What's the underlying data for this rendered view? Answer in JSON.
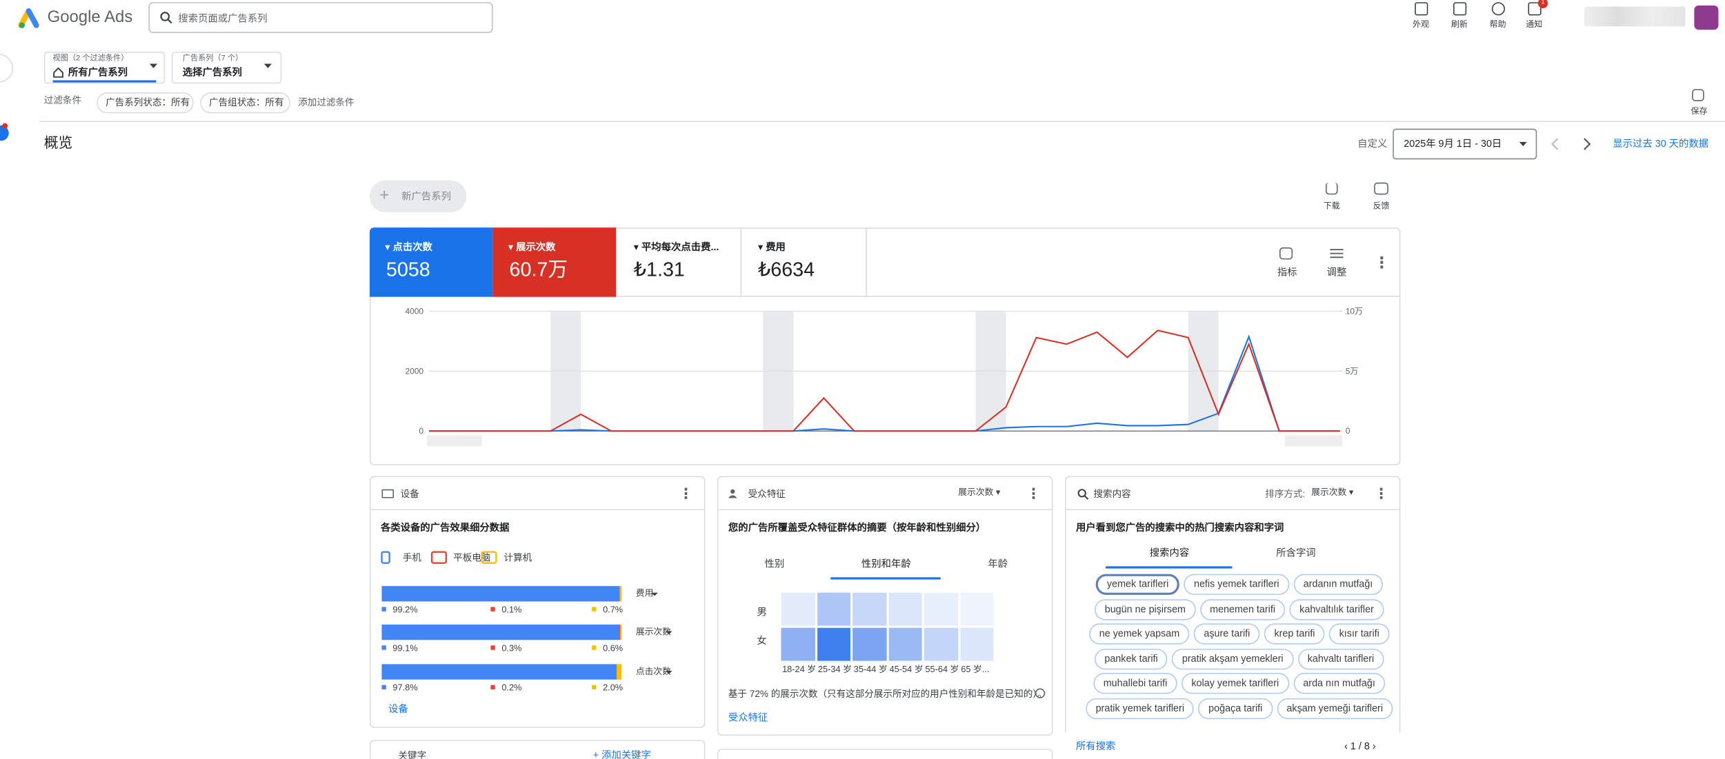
{
  "header": {
    "brand": "Google Ads",
    "search_placeholder": "搜索页面或广告系列",
    "actions": [
      "外观",
      "刷新",
      "帮助",
      "通知"
    ],
    "notification_count": "1"
  },
  "filters": {
    "view_label": "视图（2 个过滤条件）",
    "view_value": "所有广告系列",
    "campaign_label": "广告系列（7 个）",
    "campaign_value": "选择广告系列",
    "filter_title": "过滤条件",
    "chips": [
      "广告系列状态：所有",
      "广告组状态：所有"
    ],
    "add_filter": "添加过滤条件",
    "save": "保存"
  },
  "overview": {
    "title": "概览",
    "custom": "自定义",
    "date_range": "2025年 9月 1日 - 30日",
    "show_last": "显示过去 30 天的数据",
    "new_campaign": "新广告系列",
    "download": "下载",
    "feedback": "反馈",
    "metric_actions": [
      "指标",
      "调整"
    ]
  },
  "metrics": [
    {
      "label": "平均每次点击费...",
      "value": "₺1.31"
    },
    {
      "label": "费用",
      "value": "₺6634"
    }
  ],
  "chart_data": [
    {
      "type": "line",
      "categories": [
        null,
        null,
        null,
        null,
        null,
        null,
        null,
        null,
        null,
        null,
        null,
        null,
        null,
        null,
        null,
        null,
        null,
        null,
        null,
        null,
        null,
        null,
        null,
        null,
        null,
        null,
        null,
        null,
        null,
        null,
        null
      ],
      "series": [
        {
          "name": "点击次数",
          "total": "5058",
          "color": "#1a73e8",
          "values": [
            0,
            0,
            0,
            0,
            0,
            40,
            0,
            0,
            0,
            0,
            0,
            0,
            0,
            70,
            0,
            0,
            0,
            0,
            0,
            110,
            150,
            150,
            260,
            180,
            180,
            220,
            590,
            3150,
            0,
            0,
            0
          ]
        },
        {
          "name": "展示次数",
          "total": "60.7万",
          "color": "#d93025",
          "axis": "y2",
          "values": [
            0,
            0,
            0,
            0,
            0,
            14000,
            0,
            0,
            0,
            0,
            0,
            0,
            0,
            27500,
            0,
            0,
            0,
            0,
            0,
            20000,
            78000,
            72500,
            82500,
            61500,
            84000,
            78000,
            14000,
            72500,
            0,
            0,
            0
          ]
        }
      ],
      "ylim": [
        0,
        4000
      ],
      "yticks": [
        0,
        2000,
        4000
      ],
      "y2lim": [
        0,
        100000
      ],
      "y2ticks": [
        0,
        {
          "value": 50000,
          "label": "5万"
        },
        {
          "value": 100000,
          "label": "10万"
        }
      ],
      "grid": true
    },
    {
      "type": "bar",
      "orientation": "horizontal",
      "stacked": true,
      "title": "各类设备的广告效果细分数据",
      "categories": [
        "费用",
        "展示次数",
        "点击次数"
      ],
      "series": [
        {
          "name": "手机",
          "color": "#4285f4",
          "values": [
            99.2,
            99.1,
            97.8
          ],
          "value_labels": [
            "99.2%",
            "99.1%",
            "97.8%"
          ]
        },
        {
          "name": "平板电脑",
          "color": "#ea4335",
          "values": [
            0.1,
            0.3,
            0.2
          ],
          "value_labels": [
            "0.1%",
            "0.3%",
            "0.2%"
          ]
        },
        {
          "name": "计算机",
          "color": "#fbbc04",
          "values": [
            0.7,
            0.6,
            2.0
          ],
          "value_labels": [
            "0.7%",
            "0.6%",
            "2.0%"
          ]
        }
      ],
      "xlim": [
        0,
        100
      ]
    }
  ],
  "devices_panel": {
    "title": "设备",
    "link": "设备"
  },
  "audience": {
    "title": "受众特征",
    "sort": "展示次数",
    "subtitle": "您的广告所覆盖受众特征群体的摘要（按年龄和性别细分）",
    "tabs": [
      "性别",
      "性别和年龄",
      "年龄"
    ],
    "rows": [
      "男",
      "女"
    ],
    "columns": [
      "18-24 岁",
      "25-34 岁",
      "35-44 岁",
      "45-54 岁",
      "55-64 岁",
      "65 岁..."
    ],
    "footnote": "基于 72% 的展示次数（只有这部分展示所对应的用户性别和年龄是已知的）。",
    "link": "受众特征"
  },
  "search": {
    "title": "搜索内容",
    "sort_label": "排序方式:",
    "sort": "展示次数",
    "subtitle": "用户看到您广告的搜索中的热门搜索内容和字词",
    "tabs": [
      "搜索内容",
      "所含字词"
    ],
    "terms": [
      "yemek tarifleri",
      "nefis yemek tarifleri",
      "ardanın mutfağı",
      "bugün ne pişirsem",
      "menemen tarifi",
      "kahvaltılık tarifler",
      "ne yemek yapsam",
      "aşure tarifi",
      "krep tarifi",
      "kısır tarifi",
      "pankek tarifi",
      "pratik akşam yemekleri",
      "kahvaltı tarifleri",
      "muhallebi tarifi",
      "kolay yemek tarifleri",
      "arda nın mutfağı",
      "pratik yemek tarifleri",
      "poğaça tarifi",
      "akşam yemeği tarifleri"
    ],
    "link": "所有搜索",
    "pager": "1 / 8"
  },
  "keywords": {
    "title": "关键字",
    "add": "添加关键字"
  }
}
